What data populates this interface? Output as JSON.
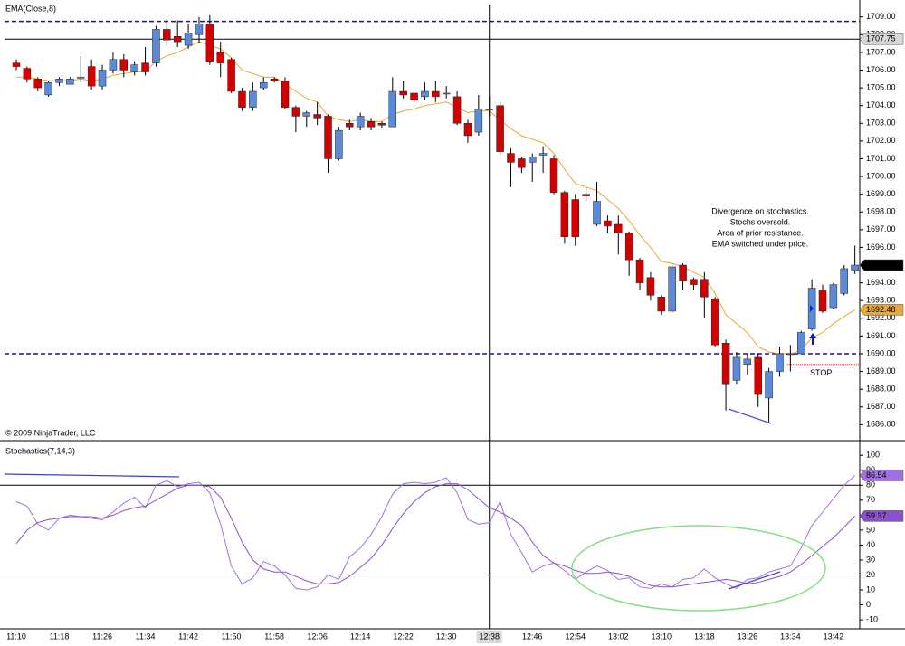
{
  "chart_data": [
    {
      "type": "candlestick",
      "title": "EMA(Close,8)",
      "copyright": "© 2009 NinjaTrader, LLC",
      "annotation": [
        "Divergence on stochastics.",
        "Stochs oversold.",
        "Area of prior resistance.",
        "EMA switched under price."
      ],
      "categories": [
        "11:10",
        null,
        null,
        null,
        "11:18",
        null,
        null,
        null,
        "11:26",
        null,
        null,
        null,
        "11:34",
        null,
        null,
        null,
        "11:42",
        null,
        null,
        null,
        "11:50",
        null,
        null,
        null,
        "11:58",
        null,
        null,
        null,
        "12:06",
        null,
        null,
        null,
        "12:14",
        null,
        null,
        null,
        "12:22",
        null,
        null,
        null,
        "12:30",
        null,
        null,
        null,
        "12:38",
        null,
        null,
        null,
        "12:46",
        null,
        null,
        null,
        "12:54",
        null,
        null,
        null,
        "13:02",
        null,
        null,
        null,
        "13:10",
        null,
        null,
        null,
        "13:18",
        null,
        null,
        null,
        "13:26",
        null,
        null,
        null,
        "13:34",
        null,
        null,
        null,
        "13:42",
        null,
        null
      ],
      "open": [
        1706.4,
        1706.1,
        1705.5,
        1704.6,
        1705.3,
        1705.2,
        1705.6,
        1706.2,
        1705.1,
        1706.0,
        1706.6,
        1705.9,
        1706.4,
        1706.4,
        1708.3,
        1707.9,
        1707.4,
        1708.0,
        1708.6,
        1707.0,
        1706.6,
        1704.8,
        1703.9,
        1705.0,
        1705.5,
        1705.4,
        1703.9,
        1703.4,
        1703.5,
        1703.4,
        1701.0,
        1703.0,
        1702.8,
        1703.1,
        1703.0,
        1702.8,
        1704.8,
        1704.7,
        1704.5,
        1704.8,
        1704.7,
        1704.5,
        1703.0,
        1702.5,
        1703.8,
        1704.0,
        1701.3,
        1701.0,
        1700.8,
        1701.2,
        1701.0,
        1699.1,
        1698.7,
        1699.0,
        1697.3,
        1697.5,
        1697.3,
        1696.8,
        1695.3,
        1694.3,
        1693.2,
        1692.4,
        1695.0,
        1694.2,
        1694.2,
        1693.1,
        1690.6,
        1688.5,
        1689.4,
        1689.8,
        1687.5,
        1689.0,
        1690.0,
        1690.0,
        1691.4,
        1693.6,
        1692.6,
        1693.4,
        1694.7
      ],
      "high": [
        1706.6,
        1706.2,
        1705.6,
        1705.4,
        1705.6,
        1705.6,
        1706.8,
        1706.6,
        1706.3,
        1707.0,
        1706.9,
        1706.5,
        1707.3,
        1708.5,
        1708.9,
        1708.8,
        1708.6,
        1709.0,
        1709.1,
        1707.6,
        1706.7,
        1705.0,
        1705.3,
        1705.6,
        1705.6,
        1705.6,
        1704.0,
        1703.7,
        1704.2,
        1703.5,
        1702.8,
        1703.2,
        1703.6,
        1703.3,
        1703.1,
        1705.6,
        1705.4,
        1704.9,
        1705.3,
        1705.4,
        1705.1,
        1704.8,
        1703.2,
        1704.6,
        1704.5,
        1704.2,
        1701.6,
        1701.1,
        1701.3,
        1701.7,
        1701.2,
        1699.2,
        1699.0,
        1699.4,
        1699.7,
        1697.8,
        1697.8,
        1696.9,
        1695.4,
        1694.6,
        1693.3,
        1695.0,
        1695.1,
        1694.3,
        1694.6,
        1693.2,
        1690.8,
        1690.1,
        1690.0,
        1690.0,
        1689.2,
        1690.4,
        1690.5,
        1691.3,
        1694.2,
        1693.9,
        1694.0,
        1695.0,
        1696.1
      ],
      "low": [
        1706.0,
        1705.3,
        1704.8,
        1704.5,
        1705.1,
        1705.2,
        1705.3,
        1704.9,
        1704.9,
        1705.8,
        1705.6,
        1705.7,
        1705.7,
        1706.2,
        1707.4,
        1707.3,
        1707.2,
        1707.5,
        1706.3,
        1705.6,
        1704.7,
        1703.7,
        1703.7,
        1704.9,
        1705.3,
        1703.8,
        1702.5,
        1702.8,
        1702.9,
        1700.2,
        1700.9,
        1702.6,
        1702.6,
        1702.6,
        1702.7,
        1702.8,
        1704.4,
        1704.2,
        1704.3,
        1704.2,
        1704.4,
        1702.9,
        1701.9,
        1702.3,
        1703.4,
        1701.2,
        1699.4,
        1700.2,
        1699.7,
        1700.2,
        1699.0,
        1696.2,
        1696.1,
        1698.6,
        1697.2,
        1696.8,
        1695.6,
        1694.4,
        1693.6,
        1693.0,
        1692.2,
        1692.3,
        1693.6,
        1693.6,
        1692.0,
        1690.4,
        1686.8,
        1688.3,
        1688.8,
        1687.0,
        1686.1,
        1688.7,
        1689.0,
        1690.0,
        1691.3,
        1692.3,
        1692.5,
        1693.3,
        1694.5
      ],
      "close": [
        1706.2,
        1705.5,
        1705.0,
        1705.3,
        1705.5,
        1705.5,
        1705.6,
        1705.1,
        1706.0,
        1706.6,
        1706.0,
        1706.3,
        1705.9,
        1708.3,
        1707.7,
        1707.6,
        1708.1,
        1708.6,
        1706.5,
        1706.4,
        1704.8,
        1703.9,
        1704.8,
        1705.3,
        1705.4,
        1703.9,
        1703.4,
        1703.6,
        1703.3,
        1701.0,
        1702.6,
        1702.8,
        1703.4,
        1702.8,
        1702.9,
        1704.8,
        1704.6,
        1704.3,
        1704.8,
        1704.5,
        1704.7,
        1703.0,
        1702.3,
        1703.8,
        1703.8,
        1701.4,
        1700.8,
        1700.5,
        1701.1,
        1701.3,
        1699.1,
        1696.6,
        1696.6,
        1698.9,
        1698.6,
        1697.2,
        1696.8,
        1695.3,
        1694.0,
        1693.3,
        1692.4,
        1694.9,
        1694.1,
        1693.9,
        1693.2,
        1690.5,
        1688.3,
        1689.8,
        1689.7,
        1687.7,
        1689.0,
        1690.0,
        1690.0,
        1691.2,
        1693.7,
        1692.4,
        1693.9,
        1694.8,
        1695.0
      ],
      "up_color": "#5b8bd8",
      "down_color": "#d40000",
      "ema": {
        "color": "#e8a838",
        "values": [
          1705.6,
          1705.6,
          1705.5,
          1705.4,
          1705.4,
          1705.4,
          1705.5,
          1705.4,
          1705.5,
          1705.7,
          1705.8,
          1705.9,
          1705.9,
          1706.5,
          1706.8,
          1707.0,
          1707.3,
          1707.6,
          1707.4,
          1707.2,
          1706.7,
          1706.0,
          1705.8,
          1705.6,
          1705.6,
          1705.2,
          1704.8,
          1704.4,
          1704.2,
          1703.4,
          1703.2,
          1703.1,
          1703.2,
          1703.1,
          1703.1,
          1703.5,
          1703.7,
          1703.8,
          1704.0,
          1704.1,
          1704.2,
          1703.9,
          1703.6,
          1703.7,
          1703.7,
          1703.2,
          1702.7,
          1702.3,
          1702.1,
          1701.9,
          1701.3,
          1700.4,
          1699.6,
          1699.4,
          1699.2,
          1698.7,
          1698.2,
          1697.5,
          1696.7,
          1696.0,
          1695.2,
          1695.1,
          1694.9,
          1694.6,
          1694.3,
          1693.4,
          1692.2,
          1691.7,
          1691.2,
          1690.4,
          1690.1,
          1690.0,
          1690.0,
          1690.2,
          1690.9,
          1691.2,
          1691.7,
          1692.1,
          1692.48
        ]
      },
      "hlines": [
        1708.75,
        1690
      ],
      "hline_color": "#1010c0",
      "crosshair": {
        "x": "12:38",
        "y": 1707.75
      },
      "last_price": {
        "value": 1695,
        "label": "1695.00"
      },
      "stop": {
        "value": 1689.4,
        "label": "STOP",
        "color": "#d04040"
      },
      "ylim": [
        1685.1,
        1709.7
      ],
      "yticks": [
        {
          "value": 1686,
          "label": "1686.00"
        },
        {
          "value": 1687,
          "label": "1687.00"
        },
        {
          "value": 1688,
          "label": "1688.00"
        },
        {
          "value": 1689,
          "label": "1689.00"
        },
        {
          "value": 1690,
          "label": "1690.00"
        },
        {
          "value": 1691,
          "label": "1691.00"
        },
        {
          "value": 1692,
          "label": "1692.00"
        },
        {
          "value": 1693,
          "label": "1693.00"
        },
        {
          "value": 1694,
          "label": "1694.00"
        },
        {
          "value": 1695,
          "label": "1695.00"
        },
        {
          "value": 1696,
          "label": "1696.00"
        },
        {
          "value": 1697,
          "label": "1697.00"
        },
        {
          "value": 1698,
          "label": "1698.00"
        },
        {
          "value": 1699,
          "label": "1699.00"
        },
        {
          "value": 1700,
          "label": "1700.00"
        },
        {
          "value": 1701,
          "label": "1701.00"
        },
        {
          "value": 1702,
          "label": "1702.00"
        },
        {
          "value": 1703,
          "label": "1703.00"
        },
        {
          "value": 1704,
          "label": "1704.00"
        },
        {
          "value": 1705,
          "label": "1705.00"
        },
        {
          "value": 1706,
          "label": "1706.00"
        },
        {
          "value": 1707,
          "label": "1707.00"
        },
        {
          "value": 1708,
          "label": "1708.00"
        },
        {
          "value": 1709,
          "label": "1709.00"
        }
      ]
    },
    {
      "type": "line",
      "title": "Stochastics(7,14,3)",
      "series": [
        {
          "color": "#a070e0",
          "values": [
            69,
            66,
            54,
            50,
            58,
            60,
            59,
            58,
            57,
            62,
            68,
            72,
            65,
            80,
            83,
            79,
            81,
            82,
            75,
            54,
            26,
            14,
            18,
            29,
            26,
            20,
            11,
            10,
            12,
            20,
            17,
            32,
            38,
            47,
            59,
            74,
            81,
            82,
            81,
            82,
            85,
            75,
            57,
            54,
            55,
            69,
            47,
            35,
            22,
            26,
            28,
            23,
            17,
            22,
            26,
            23,
            17,
            18,
            12,
            11,
            14,
            12,
            17,
            18,
            24,
            18,
            14,
            11,
            17,
            18,
            22,
            24,
            26,
            38,
            53,
            62,
            71,
            80,
            86.54
          ]
        },
        {
          "color": "#8a50d0",
          "values": [
            41,
            50,
            55,
            57,
            58,
            59,
            59,
            59,
            58,
            60,
            63,
            65,
            66,
            70,
            74,
            78,
            80,
            80,
            79,
            72,
            58,
            42,
            30,
            24,
            22,
            22,
            19,
            16,
            14,
            14,
            15,
            19,
            25,
            31,
            40,
            51,
            61,
            69,
            75,
            79,
            81,
            81,
            77,
            71,
            65,
            62,
            58,
            53,
            42,
            33,
            28,
            26,
            23,
            21,
            21,
            22,
            21,
            19,
            16,
            13,
            12,
            12,
            13,
            14,
            15,
            16,
            17,
            16,
            14,
            15,
            17,
            19,
            22,
            27,
            33,
            39,
            45,
            52,
            59.37
          ]
        }
      ],
      "hlines": [
        80,
        20
      ],
      "ylim": [
        -16,
        108
      ],
      "yticks": [
        -10,
        0,
        10,
        20,
        30,
        40,
        50,
        60,
        70,
        80,
        90,
        100
      ]
    }
  ]
}
